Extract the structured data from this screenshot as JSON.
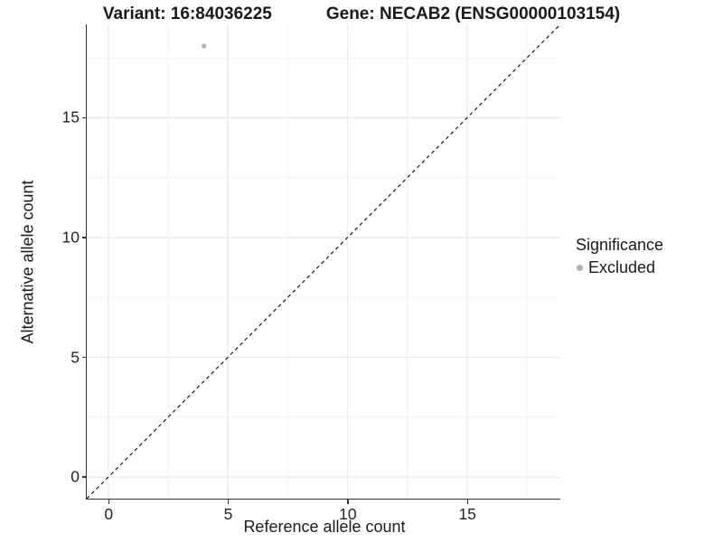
{
  "header": {
    "variant_title": "Variant: 16:84036225",
    "gene_title": "Gene: NECAB2 (ENSG00000103154)"
  },
  "legend": {
    "title": "Significance",
    "items": [
      {
        "label": "Excluded",
        "color": "#b3b3b3"
      }
    ]
  },
  "chart_data": {
    "type": "scatter",
    "title": "Variant: 16:84036225 — Gene: NECAB2 (ENSG00000103154)",
    "xlabel": "Reference allele count",
    "ylabel": "Alternative allele count",
    "xlim": [
      -0.9,
      18.9
    ],
    "ylim": [
      -0.9,
      18.9
    ],
    "x_ticks": [
      0,
      5,
      10,
      15
    ],
    "y_ticks": [
      0,
      5,
      10,
      15
    ],
    "grid": {
      "major": [
        0,
        5,
        10,
        15
      ],
      "minor": [
        2.5,
        7.5,
        12.5,
        17.5
      ]
    },
    "series": [
      {
        "name": "Excluded",
        "color": "#b3b3b3",
        "points": [
          {
            "x": 4,
            "y": 18
          }
        ]
      }
    ],
    "reference_line": {
      "style": "dashed",
      "slope": 1,
      "intercept": 0,
      "color": "#1a1a1a"
    },
    "legend_position": "right-center"
  },
  "colors": {
    "background": "#ffffff",
    "grid_major": "#e8e8e8",
    "grid_minor": "#f2f2f2",
    "axis": "#333333",
    "text": "#1a1a1a",
    "point": "#b3b3b3"
  }
}
